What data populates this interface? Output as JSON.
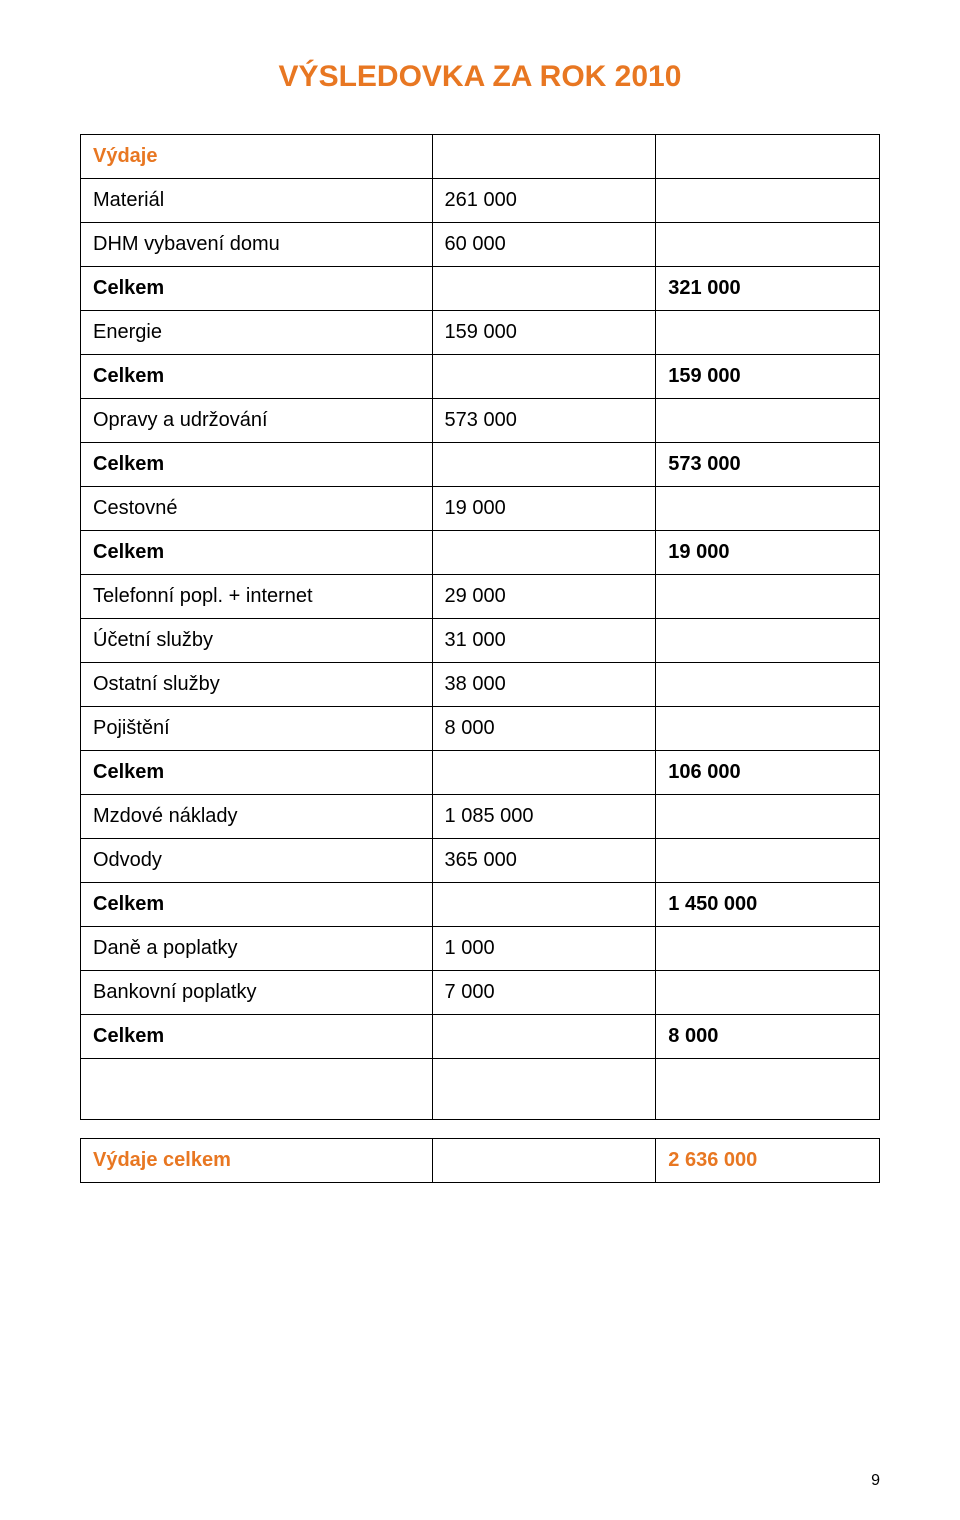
{
  "colors": {
    "accent": "#e87722",
    "text": "#000000",
    "border": "#000000",
    "background": "#ffffff"
  },
  "title": "VÝSLEDOVKA ZA ROK 2010",
  "table": {
    "rows": [
      {
        "c1": "Výdaje",
        "c2": "",
        "c3": "",
        "c1_bold": true,
        "c1_accent": true
      },
      {
        "c1": "Materiál",
        "c2": "261 000",
        "c3": ""
      },
      {
        "c1": "DHM vybavení domu",
        "c2": "60 000",
        "c3": ""
      },
      {
        "c1": "Celkem",
        "c2": "",
        "c3": "321 000",
        "c1_bold": true,
        "c3_bold": true
      },
      {
        "c1": "Energie",
        "c2": "159 000",
        "c3": ""
      },
      {
        "c1": "Celkem",
        "c2": "",
        "c3": "159 000",
        "c1_bold": true,
        "c3_bold": true
      },
      {
        "c1": "Opravy a udržování",
        "c2": "573 000",
        "c3": ""
      },
      {
        "c1": "Celkem",
        "c2": "",
        "c3": "573 000",
        "c1_bold": true,
        "c3_bold": true
      },
      {
        "c1": "Cestovné",
        "c2": "19 000",
        "c3": ""
      },
      {
        "c1": "Celkem",
        "c2": "",
        "c3": "19 000",
        "c1_bold": true,
        "c3_bold": true
      },
      {
        "c1": "Telefonní popl. + internet",
        "c2": "29 000",
        "c3": ""
      },
      {
        "c1": "Účetní služby",
        "c2": "31 000",
        "c3": ""
      },
      {
        "c1": "Ostatní služby",
        "c2": "38 000",
        "c3": ""
      },
      {
        "c1": "Pojištění",
        "c2": "8 000",
        "c3": ""
      },
      {
        "c1": "Celkem",
        "c2": "",
        "c3": "106 000",
        "c1_bold": true,
        "c3_bold": true
      },
      {
        "c1": "Mzdové náklady",
        "c2": "1 085 000",
        "c3": ""
      },
      {
        "c1": "Odvody",
        "c2": "365 000",
        "c3": ""
      },
      {
        "c1": "Celkem",
        "c2": "",
        "c3": "1 450 000",
        "c1_bold": true,
        "c3_bold": true
      },
      {
        "c1": "Daně a poplatky",
        "c2": "1 000",
        "c3": ""
      },
      {
        "c1": "Bankovní poplatky",
        "c2": "7 000",
        "c3": ""
      },
      {
        "c1": "Celkem",
        "c2": "",
        "c3": " 8 000",
        "c1_bold": true,
        "c3_bold": true
      },
      {
        "spacer": true
      }
    ]
  },
  "total": {
    "label": "Výdaje celkem",
    "value": "2 636 000"
  },
  "page_number": "9"
}
